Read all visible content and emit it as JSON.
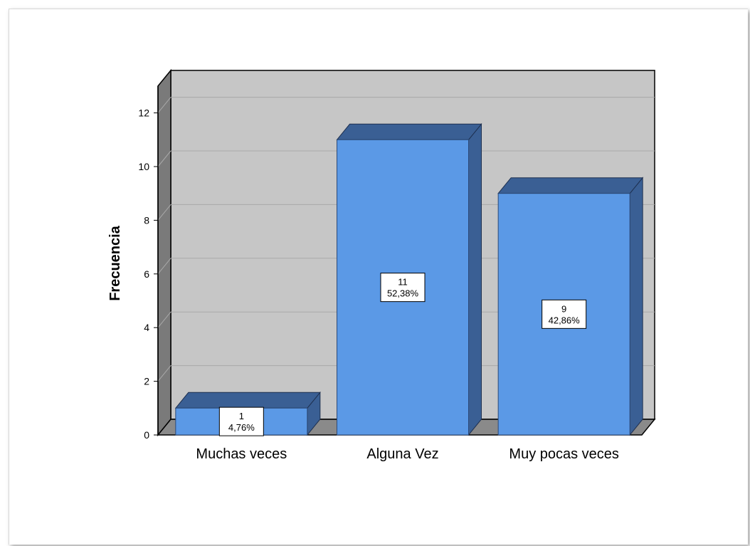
{
  "chart_data": {
    "type": "bar",
    "categories": [
      "Muchas veces",
      "Alguna Vez",
      "Muy pocas veces"
    ],
    "values": [
      1,
      11,
      9
    ],
    "percent_labels": [
      "4,76%",
      "52,38%",
      "42,86%"
    ],
    "count_labels": [
      "1",
      "11",
      "9"
    ],
    "title": "",
    "xlabel": "",
    "ylabel": "Frecuencia",
    "ylim": [
      0,
      13
    ],
    "yticks": [
      "0",
      "2",
      "4",
      "6",
      "8",
      "10",
      "12"
    ],
    "ytick_values": [
      0,
      2,
      4,
      6,
      8,
      10,
      12
    ],
    "grid": true,
    "style": "3d",
    "legend": "none"
  },
  "colors": {
    "bar_front": "#5b99e6",
    "bar_side": "#3a5f94",
    "bar_top": "#3a5f94",
    "plot_back": "#c6c6c6",
    "plot_side": "#7a7a7a",
    "plot_floor": "#8a8a8a",
    "grid": "#a9a9a9"
  }
}
